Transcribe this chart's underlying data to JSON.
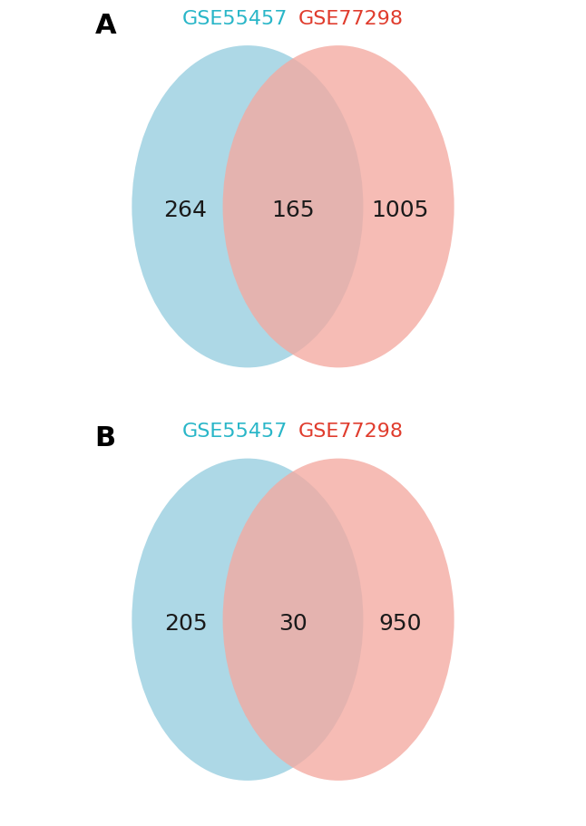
{
  "panel_A": {
    "label": "A",
    "left_label": "GSE55457",
    "right_label": "GSE77298",
    "left_only": "264",
    "intersection": "165",
    "right_only": "1005",
    "left_color": "#add8e6",
    "right_color": "#f4a9a0",
    "left_label_color": "#29b6c8",
    "right_label_color": "#e03c2d"
  },
  "panel_B": {
    "label": "B",
    "left_label": "GSE55457",
    "right_label": "GSE77298",
    "left_only": "205",
    "intersection": "30",
    "right_only": "950",
    "left_color": "#add8e6",
    "right_color": "#f4a9a0",
    "left_label_color": "#29b6c8",
    "right_label_color": "#e03c2d"
  },
  "background_color": "#ffffff",
  "number_fontsize": 18,
  "label_fontsize": 16,
  "panel_label_fontsize": 22
}
